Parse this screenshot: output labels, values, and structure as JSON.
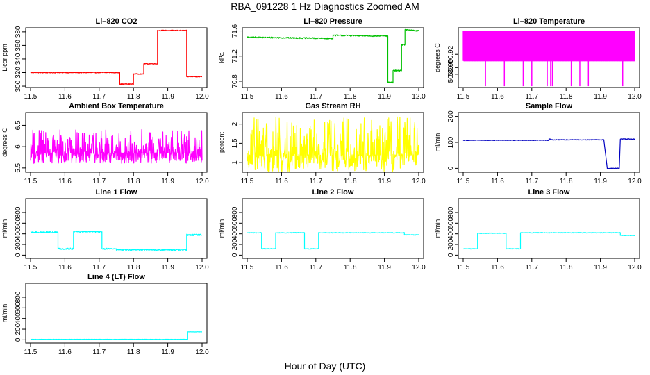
{
  "figure": {
    "title": "RBA_091228  1 Hz Diagnostics Zoomed AM",
    "xlabel": "Hour of Day (UTC)"
  },
  "chart_data": [
    {
      "type": "line",
      "title": "Li–820 CO2",
      "ylabel": "Licor ppm",
      "color": "#ff0000",
      "xlim": [
        11.5,
        12.0
      ],
      "ylim": [
        298,
        386
      ],
      "x_ticks": [
        "11.5",
        "11.6",
        "11.7",
        "11.8",
        "11.9",
        "12.0"
      ],
      "y_ticks": [
        300,
        320,
        340,
        360,
        380
      ],
      "noise": 0.6,
      "segments": [
        [
          11.5,
          320
        ],
        [
          11.76,
          320
        ],
        [
          11.76,
          303
        ],
        [
          11.8,
          303
        ],
        [
          11.8,
          318
        ],
        [
          11.83,
          318
        ],
        [
          11.83,
          333
        ],
        [
          11.87,
          333
        ],
        [
          11.87,
          382
        ],
        [
          11.955,
          382
        ],
        [
          11.955,
          314
        ],
        [
          12.0,
          314
        ]
      ]
    },
    {
      "type": "line",
      "title": "Li–820 Pressure",
      "ylabel": "kPa",
      "color": "#00c000",
      "xlim": [
        11.5,
        12.0
      ],
      "ylim": [
        70.7,
        71.65
      ],
      "x_ticks": [
        "11.5",
        "11.6",
        "11.7",
        "11.8",
        "11.9",
        "12.0"
      ],
      "y_ticks": [
        70.8,
        71.2,
        71.6
      ],
      "noise": 0.01,
      "segments": [
        [
          11.5,
          71.5
        ],
        [
          11.75,
          71.48
        ],
        [
          11.75,
          71.53
        ],
        [
          11.88,
          71.52
        ],
        [
          11.91,
          71.52
        ],
        [
          11.91,
          70.78
        ],
        [
          11.925,
          70.78
        ],
        [
          11.925,
          70.97
        ],
        [
          11.95,
          70.97
        ],
        [
          11.95,
          71.38
        ],
        [
          11.96,
          71.38
        ],
        [
          11.96,
          71.62
        ],
        [
          12.0,
          71.6
        ]
      ]
    },
    {
      "type": "line",
      "title": "Li–820 Temperature",
      "ylabel": "degrees C",
      "color": "#ff00ff",
      "xlim": [
        11.5,
        12.0
      ],
      "ylim": [
        50.87,
        50.96
      ],
      "x_ticks": [
        "11.5",
        "11.6",
        "11.7",
        "11.8",
        "11.9",
        "12.0"
      ],
      "y_ticks": [
        50.89,
        50.9,
        50.92
      ],
      "y_tick_labels": [
        "50.89",
        "50.90",
        "50.92"
      ],
      "style": "band",
      "band": [
        50.91,
        50.955
      ],
      "spikes_at": [
        11.565,
        11.62,
        11.675,
        11.7,
        11.745,
        11.755,
        11.76,
        11.815,
        11.84,
        11.865,
        11.965
      ],
      "spike_value": 50.872
    },
    {
      "type": "line",
      "title": "Ambient Box Temperature",
      "ylabel": "degrees C",
      "color": "#ff00ff",
      "xlim": [
        11.5,
        12.0
      ],
      "ylim": [
        5.4,
        6.8
      ],
      "x_ticks": [
        "11.5",
        "11.6",
        "11.7",
        "11.8",
        "11.9",
        "12.0"
      ],
      "y_ticks": [
        5.5,
        6.0,
        6.5
      ],
      "style": "noise",
      "base": 5.85,
      "amplitude": 0.55
    },
    {
      "type": "line",
      "title": "Gas Stream RH",
      "ylabel": "percent",
      "color": "#ffff00",
      "xlim": [
        11.5,
        12.0
      ],
      "ylim": [
        0.75,
        2.3
      ],
      "x_ticks": [
        "11.5",
        "11.6",
        "11.7",
        "11.8",
        "11.9",
        "12.0"
      ],
      "y_ticks": [
        1.0,
        1.5,
        2.0
      ],
      "style": "noise",
      "base": 1.2,
      "amplitude": 1.0
    },
    {
      "type": "line",
      "title": "Sample Flow",
      "ylabel": "ml/min",
      "color": "#0000c0",
      "xlim": [
        11.5,
        12.0
      ],
      "ylim": [
        -15,
        215
      ],
      "x_ticks": [
        "11.5",
        "11.6",
        "11.7",
        "11.8",
        "11.9",
        "12.0"
      ],
      "y_ticks": [
        0,
        100,
        200
      ],
      "noise": 1.2,
      "segments": [
        [
          11.5,
          108
        ],
        [
          11.75,
          108
        ],
        [
          11.75,
          113
        ],
        [
          11.76,
          110
        ],
        [
          11.91,
          110
        ],
        [
          11.92,
          0
        ],
        [
          11.955,
          0
        ],
        [
          11.958,
          113
        ],
        [
          12.0,
          113
        ]
      ]
    },
    {
      "type": "line",
      "title": "Line 1 Flow",
      "ylabel": "ml/min",
      "color": "#00ffff",
      "xlim": [
        11.5,
        12.0
      ],
      "ylim": [
        -60,
        1060
      ],
      "x_ticks": [
        "11.5",
        "11.6",
        "11.7",
        "11.8",
        "11.9",
        "12.0"
      ],
      "y_ticks": [
        0,
        200,
        400,
        600,
        800
      ],
      "noise": 14,
      "segments": [
        [
          11.5,
          430
        ],
        [
          11.58,
          430
        ],
        [
          11.58,
          120
        ],
        [
          11.625,
          120
        ],
        [
          11.625,
          440
        ],
        [
          11.708,
          440
        ],
        [
          11.708,
          120
        ],
        [
          11.75,
          120
        ],
        [
          11.75,
          100
        ],
        [
          11.955,
          100
        ],
        [
          11.955,
          380
        ],
        [
          12.0,
          380
        ]
      ]
    },
    {
      "type": "line",
      "title": "Line 2 Flow",
      "ylabel": "ml/min",
      "color": "#00ffff",
      "xlim": [
        11.5,
        12.0
      ],
      "ylim": [
        -60,
        1060
      ],
      "x_ticks": [
        "11.5",
        "11.6",
        "11.7",
        "11.8",
        "11.9",
        "12.0"
      ],
      "y_ticks": [
        0,
        200,
        400,
        600,
        800
      ],
      "noise": 6,
      "segments": [
        [
          11.5,
          420
        ],
        [
          11.542,
          420
        ],
        [
          11.542,
          120
        ],
        [
          11.583,
          120
        ],
        [
          11.583,
          420
        ],
        [
          11.667,
          420
        ],
        [
          11.667,
          120
        ],
        [
          11.708,
          120
        ],
        [
          11.708,
          420
        ],
        [
          11.958,
          420
        ],
        [
          11.958,
          380
        ],
        [
          12.0,
          380
        ]
      ]
    },
    {
      "type": "line",
      "title": "Line 3 Flow",
      "ylabel": "ml/min",
      "color": "#00ffff",
      "xlim": [
        11.5,
        12.0
      ],
      "ylim": [
        -60,
        1060
      ],
      "x_ticks": [
        "11.5",
        "11.6",
        "11.7",
        "11.8",
        "11.9",
        "12.0"
      ],
      "y_ticks": [
        0,
        200,
        400,
        600,
        800
      ],
      "noise": 6,
      "segments": [
        [
          11.5,
          120
        ],
        [
          11.542,
          120
        ],
        [
          11.542,
          410
        ],
        [
          11.625,
          410
        ],
        [
          11.625,
          120
        ],
        [
          11.667,
          120
        ],
        [
          11.667,
          420
        ],
        [
          11.958,
          420
        ],
        [
          11.958,
          370
        ],
        [
          12.0,
          370
        ]
      ]
    },
    {
      "type": "line",
      "title": "Line 4 (LT) Flow",
      "ylabel": "ml/min",
      "color": "#00ffff",
      "xlim": [
        11.5,
        12.0
      ],
      "ylim": [
        -60,
        1060
      ],
      "x_ticks": [
        "11.5",
        "11.6",
        "11.7",
        "11.8",
        "11.9",
        "12.0"
      ],
      "y_ticks": [
        0,
        200,
        400,
        600,
        800
      ],
      "noise": 2,
      "segments": [
        [
          11.5,
          10
        ],
        [
          11.958,
          10
        ],
        [
          11.958,
          150
        ],
        [
          12.0,
          150
        ]
      ]
    }
  ]
}
